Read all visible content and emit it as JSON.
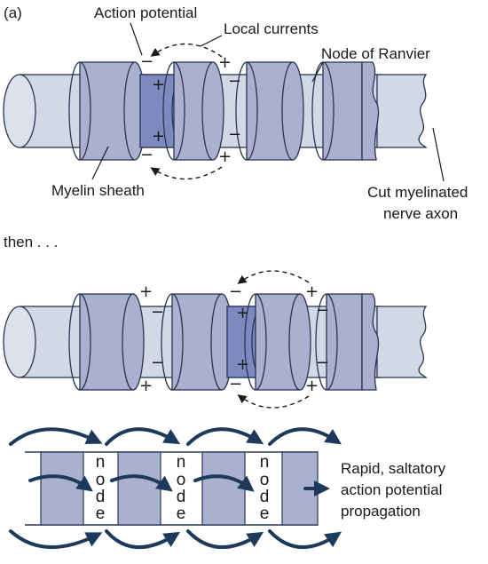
{
  "panel_label": "(a)",
  "labels": {
    "action_potential": "Action potential",
    "local_currents": "Local currents",
    "node_of_ranvier": "Node of Ranvier",
    "myelin_sheath": "Myelin sheath",
    "cut_axon_line1": "Cut myelinated",
    "cut_axon_line2": "nerve axon",
    "then": "then . . .",
    "node_letters": [
      "n",
      "o",
      "d",
      "e"
    ],
    "saltatory_line1": "Rapid, saltatory",
    "saltatory_line2": "action potential",
    "saltatory_line3": "propagation"
  },
  "signs": {
    "plus": "+",
    "minus": "−"
  },
  "colors": {
    "axon": "#d3d8e6",
    "axon_face": "#dde1ec",
    "myelin": "#a9b0d0",
    "active_node": "#7c8ac0",
    "outline": "#2a3550",
    "arrow": "#1d3a5c"
  }
}
